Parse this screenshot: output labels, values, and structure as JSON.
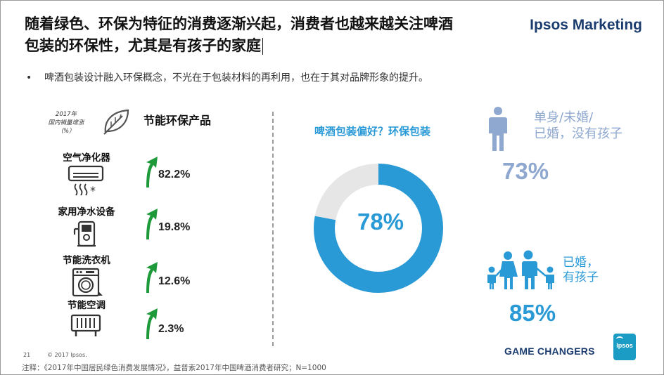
{
  "header": {
    "title_line1": "随着绿色、环保为特征的消费逐渐兴起，消费者也越来越关注啤酒",
    "title_line2": "包装的环保性，尤其是有孩子的家庭",
    "brand": "Ipsos Marketing"
  },
  "bullet": {
    "symbol": "•",
    "text": "啤酒包装设计融入环保概念，不光在于包装材料的再利用，也在于其对品牌形象的提升。"
  },
  "left_panel": {
    "small_head_line1": "2017年",
    "small_head_line2": "国内销量增涨（%）",
    "section_title": "节能环保产品",
    "leaf_icon": "leaf-icon",
    "products": [
      {
        "name": "空气净化器",
        "value": "82.2%",
        "icon": "air-conditioner-icon"
      },
      {
        "name": "家用净水设备",
        "value": "19.8%",
        "icon": "water-purifier-icon"
      },
      {
        "name": "节能洗衣机",
        "value": "12.6%",
        "icon": "washing-machine-icon"
      },
      {
        "name": "节能空调",
        "value": "2.3%",
        "icon": "radiator-icon"
      }
    ],
    "arrow_color": "#1e9a3a"
  },
  "donut": {
    "title": "啤酒包装偏好？环保包装",
    "value_label": "78%",
    "value": 78,
    "fill_color": "#2a9ad7",
    "rest_color": "#e6e6e6"
  },
  "segments": {
    "single_label_line1": "单身/未婚/",
    "single_label_line2": "已婚，没有孩子",
    "single_pct": "73%",
    "single_color": "#8fa8d0",
    "family_label_line1": "已婚，",
    "family_label_line2": "有孩子",
    "family_pct": "85%",
    "family_color": "#2a9ad7"
  },
  "footer": {
    "page_number": "21",
    "copyright": "© 2017 Ipsos.",
    "tagline": "GAME CHANGERS",
    "badge": "Ipsos",
    "footnote": "注释：《2017年中国居民绿色消费发展情况》，益普索2017年中国啤酒消费者研究；N=1000"
  }
}
